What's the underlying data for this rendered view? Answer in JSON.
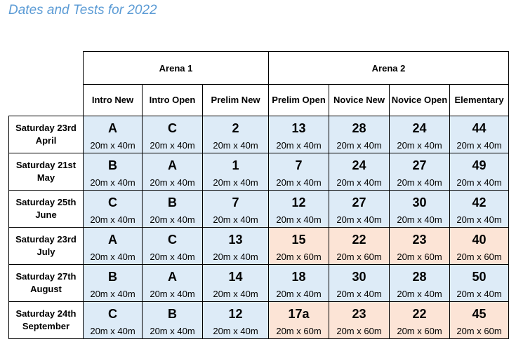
{
  "title": "Dates and Tests for 2022",
  "arenas": [
    "Arena 1",
    "Arena 2"
  ],
  "columns": [
    "Intro New",
    "Intro Open",
    "Prelim New",
    "Prelim Open",
    "Novice New",
    "Novice Open",
    "Elementary"
  ],
  "rows": [
    {
      "date": "Saturday 23rd April",
      "tests": [
        "A",
        "C",
        "2",
        "13",
        "28",
        "24",
        "44"
      ],
      "sizes": [
        "20m x 40m",
        "20m x 40m",
        "20m x 40m",
        "20m x 40m",
        "20m x 40m",
        "20m x 40m",
        "20m x 40m"
      ],
      "colors": [
        "blue",
        "blue",
        "blue",
        "blue",
        "blue",
        "blue",
        "blue"
      ]
    },
    {
      "date": "Saturday 21st May",
      "tests": [
        "B",
        "A",
        "1",
        "7",
        "24",
        "27",
        "49"
      ],
      "sizes": [
        "20m x 40m",
        "20m x 40m",
        "20m x 40m",
        "20m x 40m",
        "20m x 40m",
        "20m x 40m",
        "20m x 40m"
      ],
      "colors": [
        "blue",
        "blue",
        "blue",
        "blue",
        "blue",
        "blue",
        "blue"
      ]
    },
    {
      "date": "Saturday 25th June",
      "tests": [
        "C",
        "B",
        "7",
        "12",
        "27",
        "30",
        "42"
      ],
      "sizes": [
        "20m x 40m",
        "20m x 40m",
        "20m x 40m",
        "20m x 40m",
        "20m x 40m",
        "20m x 40m",
        "20m x 40m"
      ],
      "colors": [
        "blue",
        "blue",
        "blue",
        "blue",
        "blue",
        "blue",
        "blue"
      ]
    },
    {
      "date": "Saturday 23rd July",
      "tests": [
        "A",
        "C",
        "13",
        "15",
        "22",
        "23",
        "40"
      ],
      "sizes": [
        "20m x 40m",
        "20m x 40m",
        "20m x 40m",
        "20m x 60m",
        "20m x 60m",
        "20m x 60m",
        "20m x 60m"
      ],
      "colors": [
        "blue",
        "blue",
        "blue",
        "peach",
        "peach",
        "peach",
        "peach"
      ]
    },
    {
      "date": "Saturday 27th August",
      "tests": [
        "B",
        "A",
        "14",
        "18",
        "30",
        "28",
        "50"
      ],
      "sizes": [
        "20m x 40m",
        "20m x 40m",
        "20m x 40m",
        "20m x 40m",
        "20m x 40m",
        "20m x 40m",
        "20m x 40m"
      ],
      "colors": [
        "blue",
        "blue",
        "blue",
        "blue",
        "blue",
        "blue",
        "blue"
      ]
    },
    {
      "date": "Saturday 24th September",
      "tests": [
        "C",
        "B",
        "12",
        "17a",
        "23",
        "22",
        "45"
      ],
      "sizes": [
        "20m x 40m",
        "20m x 40m",
        "20m x 40m",
        "20m x 60m",
        "20m x 60m",
        "20m x 60m",
        "20m x 60m"
      ],
      "colors": [
        "blue",
        "blue",
        "blue",
        "peach",
        "peach",
        "peach",
        "peach"
      ]
    }
  ],
  "colors": {
    "title": "#5b9bd5",
    "blue": "#ddebf7",
    "peach": "#fce4d6"
  }
}
